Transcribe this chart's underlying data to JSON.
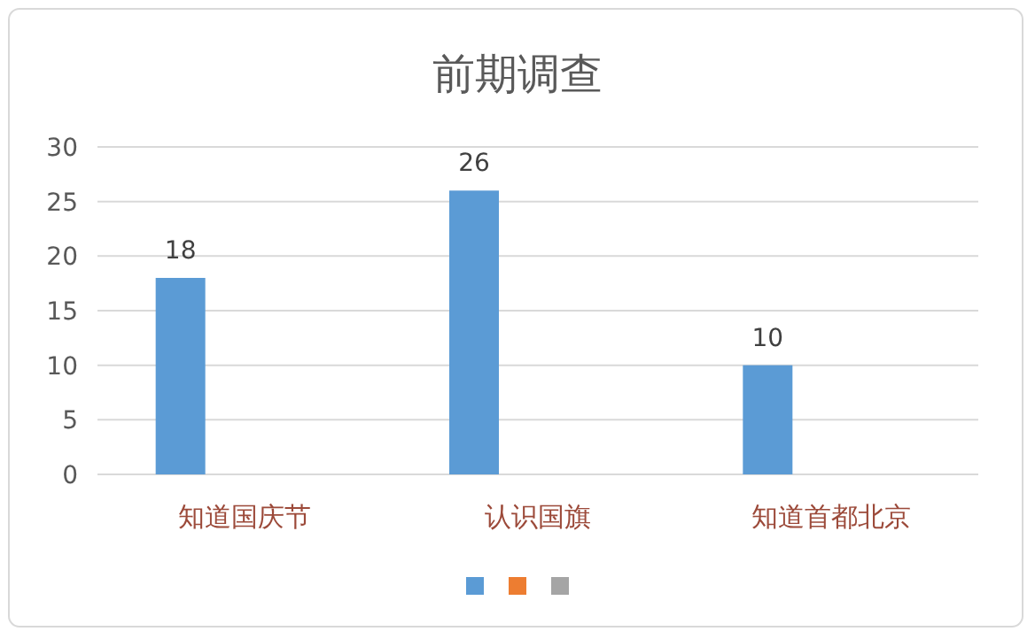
{
  "chart_data": {
    "type": "bar",
    "title": "前期调查",
    "categories": [
      "知道国庆节",
      "认识国旗",
      "知道首都北京"
    ],
    "series": [
      {
        "color": "#5b9bd5",
        "values": [
          18,
          26,
          10
        ]
      },
      {
        "color": "#ed7d31",
        "values": [
          null,
          null,
          null
        ]
      },
      {
        "color": "#a5a5a5",
        "values": [
          null,
          null,
          null
        ]
      }
    ],
    "ylim": [
      0,
      30
    ],
    "yticks": [
      0,
      5,
      10,
      15,
      20,
      25,
      30
    ],
    "grid": "y",
    "data_labels": true
  }
}
